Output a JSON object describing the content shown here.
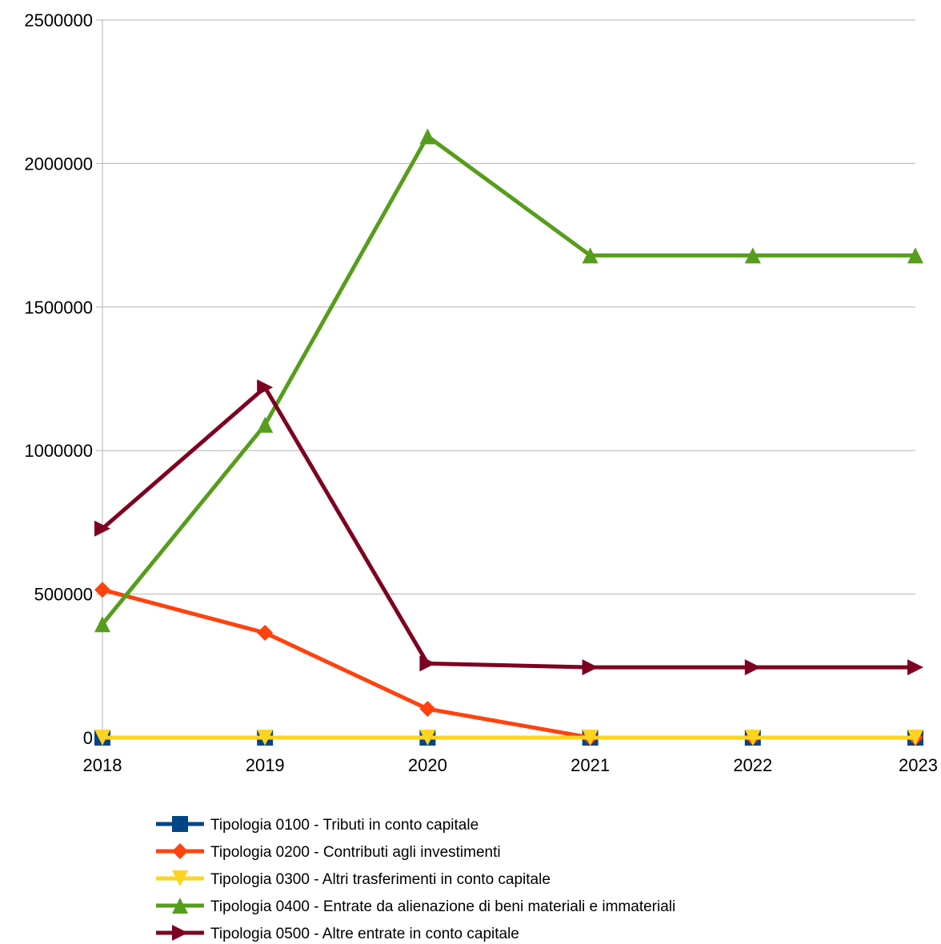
{
  "chart_data": {
    "type": "line",
    "title": "",
    "xlabel": "",
    "ylabel": "",
    "x": [
      "2018",
      "2019",
      "2020",
      "2021",
      "2022",
      "2023"
    ],
    "ylim": [
      0,
      2500000
    ],
    "yticks": [
      "0",
      "500000",
      "1000000",
      "1500000",
      "2000000",
      "2500000"
    ],
    "grid": "horizontal",
    "legend_position": "bottom",
    "series": [
      {
        "name": "Tipologia 0100 - Tributi in conto capitale",
        "values": [
          0,
          0,
          0,
          0,
          0,
          0
        ],
        "color": "#004586",
        "marker": "square"
      },
      {
        "name": "Tipologia 0200 - Contributi agli investimenti",
        "values": [
          515000,
          365000,
          100000,
          0,
          0,
          0
        ],
        "color": "#ff420e",
        "marker": "diamond"
      },
      {
        "name": "Tipologia 0300 - Altri trasferimenti in conto capitale",
        "values": [
          0,
          0,
          0,
          0,
          0,
          0
        ],
        "color": "#ffd320",
        "marker": "triangle-down"
      },
      {
        "name": "Tipologia 0400 - Entrate da alienazione di beni materiali e immateriali",
        "values": [
          395000,
          1090000,
          2095000,
          1680000,
          1680000,
          1680000
        ],
        "color": "#579d1c",
        "marker": "triangle-up"
      },
      {
        "name": "Tipologia 0500 - Altre entrate in conto capitale",
        "values": [
          728000,
          1220000,
          258000,
          245000,
          245000,
          245000
        ],
        "color": "#7e0021",
        "marker": "triangle-right"
      }
    ]
  }
}
